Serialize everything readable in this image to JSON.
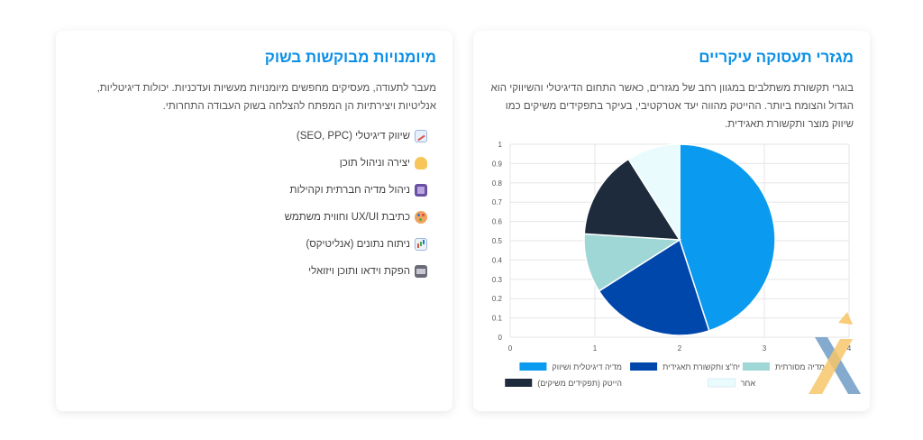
{
  "sectors_card": {
    "title": "מגזרי תעסוקה עיקריים",
    "text": "בוגרי תקשורת משתלבים במגוון רחב של מגזרים, כאשר התחום הדיגיטלי והשיווקי הוא הגדול והצומח ביותר. ההייטק מהווה יעד אטרקטיבי, בעיקר בתפקידים משיקים כמו שיווק מוצר ותקשורת תאגידית."
  },
  "skills_card": {
    "title": "מיומנויות מבוקשות בשוק",
    "text": "מעבר לתעודה, מעסיקים מחפשים מיומנויות מעשיות ועדכניות. יכולות דיגיטליות, אנליטיות ויצירתיות הן המפתח להצלחה בשוק העבודה התחרותי.",
    "skills": [
      {
        "label": "שיווק דיגיטלי (SEO, PPC)",
        "icon": "chart-increasing-icon"
      },
      {
        "label": "יצירה וניהול תוכן",
        "icon": "writing-hand-icon"
      },
      {
        "label": "ניהול מדיה חברתית וקהילות",
        "icon": "tablet-icon"
      },
      {
        "label": "כתיבת UX/UI וחווית משתמש",
        "icon": "palette-icon"
      },
      {
        "label": "ניתוח נתונים (אנליטיקס)",
        "icon": "bar-chart-icon"
      },
      {
        "label": "הפקת וידאו ותוכן ויזואלי",
        "icon": "video-camera-icon"
      }
    ]
  },
  "chart_data": {
    "type": "pie",
    "title": "",
    "slices": [
      {
        "label": "מדיה דיגיטלית ושיווק",
        "value": 45,
        "color": "#0a9bf0"
      },
      {
        "label": "יח\"צ ותקשורת תאגידית",
        "value": 21,
        "color": "#0047ab"
      },
      {
        "label": "מדיה מסורתית",
        "value": 10,
        "color": "#9fd7d6"
      },
      {
        "label": "הייטק (תפקידים משיקים)",
        "value": 15,
        "color": "#1e2b3c"
      },
      {
        "label": "אחר",
        "value": 9,
        "color": "#e9fbfd"
      }
    ],
    "x_ticks": [
      "0",
      "1",
      "2",
      "3",
      "4"
    ],
    "y_ticks": [
      "0",
      "0.1",
      "0.2",
      "0.3",
      "0.4",
      "0.5",
      "0.6",
      "0.7",
      "0.8",
      "0.9",
      "1"
    ],
    "xlim": [
      0,
      4
    ],
    "ylim": [
      0,
      1
    ],
    "grid": true,
    "legend_position": "bottom"
  },
  "logo": {
    "name": "x-logo-icon",
    "colors": [
      "#6f9bc6",
      "#f7c76a"
    ]
  }
}
